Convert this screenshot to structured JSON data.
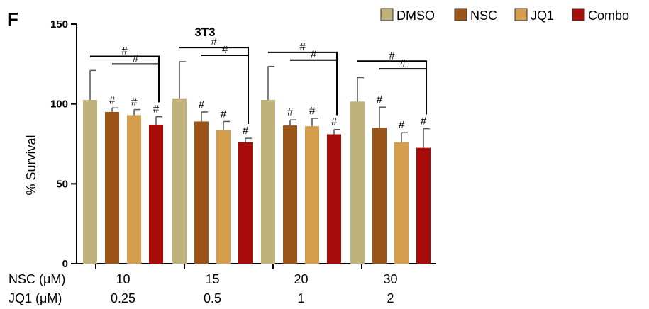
{
  "panel_label": "F",
  "chart_data": {
    "type": "bar",
    "title": "3T3",
    "xlabel": "",
    "ylabel": "% Survival",
    "ylim": [
      0,
      150
    ],
    "yticks": [
      0,
      50,
      100,
      150
    ],
    "grid": false,
    "legend_position": "top-right",
    "categories": [
      "10 / 0.25",
      "15 / 0.5",
      "20 / 1",
      "30 / 2"
    ],
    "x_rows": [
      {
        "label": "NSC (μM)",
        "values": [
          "10",
          "15",
          "20",
          "30"
        ]
      },
      {
        "label": "JQ1  (μM)",
        "values": [
          "0.25",
          "0.5",
          "1",
          "2"
        ]
      }
    ],
    "series": [
      {
        "name": "DMSO",
        "color": "#bfb27a",
        "values": [
          102.5,
          103.5,
          102.5,
          101.5
        ],
        "errors": [
          18.5,
          23,
          21,
          15
        ]
      },
      {
        "name": "NSC",
        "color": "#9b5518",
        "values": [
          95,
          89,
          86.5,
          85
        ],
        "errors": [
          2.5,
          6,
          3.5,
          13
        ]
      },
      {
        "name": "JQ1",
        "color": "#d49e4c",
        "values": [
          93,
          83.5,
          86,
          76
        ],
        "errors": [
          3.5,
          5.5,
          5,
          6
        ]
      },
      {
        "name": "Combo",
        "color": "#a80c0a",
        "values": [
          87,
          76,
          81,
          72.5
        ],
        "errors": [
          5,
          2.5,
          3,
          12
        ]
      }
    ],
    "significance_marker": "#",
    "bar_markers": [
      [
        "",
        "#",
        "#",
        "#"
      ],
      [
        "",
        "#",
        "#",
        "#"
      ],
      [
        "",
        "#",
        "#",
        "#"
      ],
      [
        "",
        "#",
        "#",
        "#"
      ]
    ],
    "comparison_brackets": [
      {
        "group": 0,
        "from": "DMSO",
        "to": "Combo",
        "label": "#"
      },
      {
        "group": 0,
        "from": "NSC",
        "to": "Combo",
        "label": "#"
      },
      {
        "group": 1,
        "from": "DMSO",
        "to": "Combo",
        "label": "#"
      },
      {
        "group": 1,
        "from": "NSC",
        "to": "Combo",
        "label": "#"
      },
      {
        "group": 2,
        "from": "DMSO",
        "to": "Combo",
        "label": "#"
      },
      {
        "group": 2,
        "from": "NSC",
        "to": "Combo",
        "label": "#"
      },
      {
        "group": 3,
        "from": "DMSO",
        "to": "Combo",
        "label": "#"
      },
      {
        "group": 3,
        "from": "NSC",
        "to": "Combo",
        "label": "#"
      }
    ]
  }
}
